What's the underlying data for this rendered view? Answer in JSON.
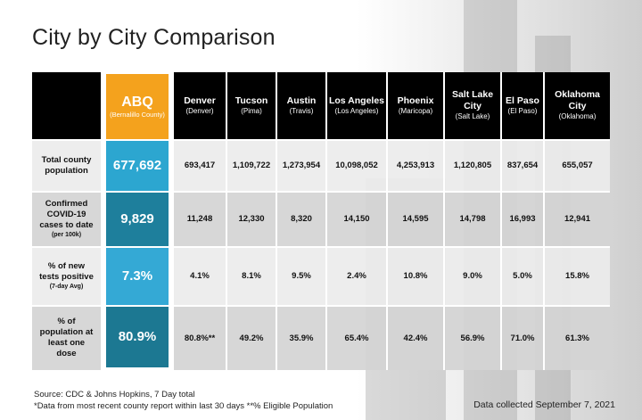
{
  "title": "City by City Comparison",
  "accent": {
    "abq_header": "#f4a21d",
    "abq_cells": "#2ca6d0"
  },
  "columns": [
    {
      "name": "ABQ",
      "sub": "(Bernalillo County)"
    },
    {
      "name": "Denver",
      "sub": "(Denver)"
    },
    {
      "name": "Tucson",
      "sub": "(Pima)"
    },
    {
      "name": "Austin",
      "sub": "(Travis)"
    },
    {
      "name": "Los Angeles",
      "sub": "(Los Angeles)"
    },
    {
      "name": "Phoenix",
      "sub": "(Maricopa)"
    },
    {
      "name": "Salt Lake City",
      "sub": "(Salt Lake)"
    },
    {
      "name": "El Paso",
      "sub": "(El Paso)"
    },
    {
      "name": "Oklahoma City",
      "sub": "(Oklahoma)"
    }
  ],
  "rows": [
    {
      "label": "Total county population",
      "sub": "",
      "values": [
        "677,692",
        "693,417",
        "1,109,722",
        "1,273,954",
        "10,098,052",
        "4,253,913",
        "1,120,805",
        "837,654",
        "655,057"
      ]
    },
    {
      "label": "Confirmed COVID-19 cases to date",
      "sub": "(per 100k)",
      "values": [
        "9,829",
        "11,248",
        "12,330",
        "8,320",
        "14,150",
        "14,595",
        "14,798",
        "16,993",
        "12,941"
      ]
    },
    {
      "label": "% of new tests positive",
      "sub": "(7-day Avg)",
      "values": [
        "7.3%",
        "4.1%",
        "8.1%",
        "9.5%",
        "2.4%",
        "10.8%",
        "9.0%",
        "5.0%",
        "15.8%"
      ]
    },
    {
      "label": "% of population at least one dose",
      "sub": "",
      "values": [
        "80.9%",
        "80.8%**",
        "49.2%",
        "35.9%",
        "65.4%",
        "42.4%",
        "56.9%",
        "71.0%",
        "61.3%"
      ]
    }
  ],
  "footer": {
    "line1": "Source: CDC & Johns Hopkins, 7 Day total",
    "line2": "*Data from most recent county report within last 30 days **% Eligible Population",
    "collected": "Data collected September 7, 2021"
  }
}
